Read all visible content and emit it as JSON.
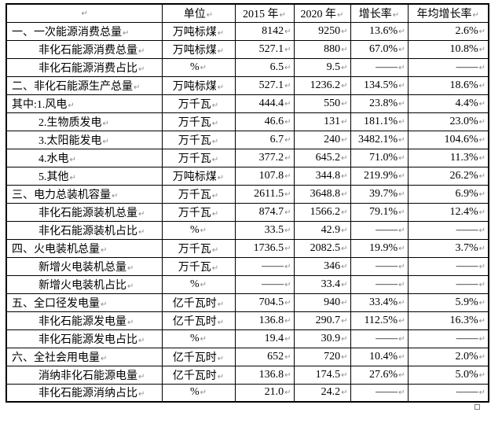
{
  "table": {
    "headers": [
      "",
      "单位",
      "2015 年",
      "2020 年",
      "增长率",
      "年均增长率"
    ],
    "rows": [
      {
        "label": "一、一次能源消费总量",
        "indent": false,
        "unit": "万吨标煤",
        "y2015": "8142",
        "y2020": "9250",
        "growth": "13.6%",
        "avg_growth": "2.6%"
      },
      {
        "label": "非化石能源消费总量",
        "indent": true,
        "unit": "万吨标煤",
        "y2015": "527.1",
        "y2020": "880",
        "growth": "67.0%",
        "avg_growth": "10.8%"
      },
      {
        "label": "非化石能源消费占比",
        "indent": true,
        "unit": "%",
        "y2015": "6.5",
        "y2020": "9.5",
        "growth": "——",
        "avg_growth": "——"
      },
      {
        "label": "二、非化石能源生产总量",
        "indent": false,
        "unit": "万吨标煤",
        "y2015": "527.1",
        "y2020": "1236.2",
        "growth": "134.5%",
        "avg_growth": "18.6%"
      },
      {
        "label": "其中:1.风电",
        "indent": false,
        "unit": "万千瓦",
        "y2015": "444.4",
        "y2020": "550",
        "growth": "23.8%",
        "avg_growth": "4.4%"
      },
      {
        "label": "2.生物质发电",
        "indent": true,
        "unit": "万千瓦",
        "y2015": "46.6",
        "y2020": "131",
        "growth": "181.1%",
        "avg_growth": "23.0%"
      },
      {
        "label": "3.太阳能发电",
        "indent": true,
        "unit": "万千瓦",
        "y2015": "6.7",
        "y2020": "240",
        "growth": "3482.1%",
        "avg_growth": "104.6%"
      },
      {
        "label": "4.水电",
        "indent": true,
        "unit": "万千瓦",
        "y2015": "377.2",
        "y2020": "645.2",
        "growth": "71.0%",
        "avg_growth": "11.3%"
      },
      {
        "label": "5.其他",
        "indent": true,
        "unit": "万吨标煤",
        "y2015": "107.8",
        "y2020": "344.8",
        "growth": "219.9%",
        "avg_growth": "26.2%"
      },
      {
        "label": "三、电力总装机容量",
        "indent": false,
        "unit": "万千瓦",
        "y2015": "2611.5",
        "y2020": "3648.8",
        "growth": "39.7%",
        "avg_growth": "6.9%"
      },
      {
        "label": "非化石能源装机总量",
        "indent": true,
        "unit": "万千瓦",
        "y2015": "874.7",
        "y2020": "1566.2",
        "growth": "79.1%",
        "avg_growth": "12.4%"
      },
      {
        "label": "非化石能源装机占比",
        "indent": true,
        "unit": "%",
        "y2015": "33.5",
        "y2020": "42.9",
        "growth": "——",
        "avg_growth": "——"
      },
      {
        "label": "四、火电装机总量",
        "indent": false,
        "unit": "万千瓦",
        "y2015": "1736.5",
        "y2020": "2082.5",
        "growth": "19.9%",
        "avg_growth": "3.7%"
      },
      {
        "label": "新增火电装机总量",
        "indent": true,
        "unit": "万千瓦",
        "y2015": "——",
        "y2020": "346",
        "growth": "——",
        "avg_growth": "——"
      },
      {
        "label": "新增火电装机占比",
        "indent": true,
        "unit": "%",
        "y2015": "——",
        "y2020": "33.4",
        "growth": "——",
        "avg_growth": "——"
      },
      {
        "label": "五、全口径发电量",
        "indent": false,
        "unit": "亿千瓦时",
        "y2015": "704.5",
        "y2020": "940",
        "growth": "33.4%",
        "avg_growth": "5.9%"
      },
      {
        "label": "非化石能源发电量",
        "indent": true,
        "unit": "亿千瓦时",
        "y2015": "136.8",
        "y2020": "290.7",
        "growth": "112.5%",
        "avg_growth": "16.3%"
      },
      {
        "label": "非化石能源发电占比",
        "indent": true,
        "unit": "%",
        "y2015": "19.4",
        "y2020": "30.9",
        "growth": "——",
        "avg_growth": "——"
      },
      {
        "label": "六、全社会用电量",
        "indent": false,
        "unit": "亿千瓦时",
        "y2015": "652",
        "y2020": "720",
        "growth": "10.4%",
        "avg_growth": "2.0%"
      },
      {
        "label": "消纳非化石能源电量",
        "indent": true,
        "unit": "亿千瓦时",
        "y2015": "136.8",
        "y2020": "174.5",
        "growth": "27.6%",
        "avg_growth": "5.0%"
      },
      {
        "label": "非化石能源消纳占比",
        "indent": true,
        "unit": "%",
        "y2015": "21.0",
        "y2020": "24.2",
        "growth": "——",
        "avg_growth": "——"
      }
    ]
  },
  "marks": {
    "cell_end": "↵",
    "row_end": "¤"
  },
  "colors": {
    "border": "#000000",
    "text": "#000000",
    "mark": "#8a8a8a",
    "background": "#ffffff"
  }
}
